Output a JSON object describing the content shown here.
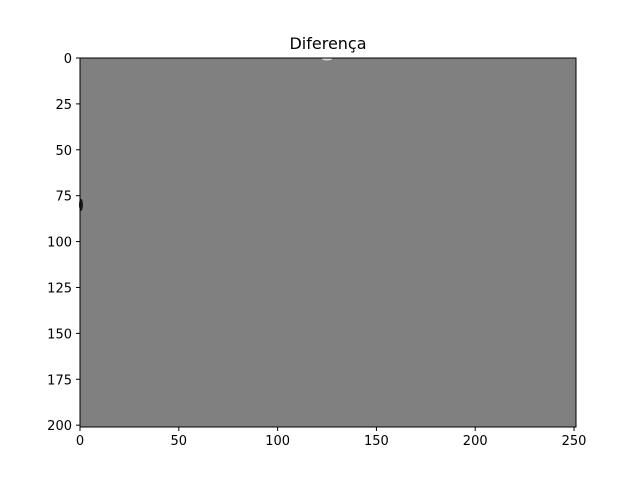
{
  "chart_data": {
    "type": "heatmap",
    "title": "Diferença",
    "xlabel": "",
    "ylabel": "",
    "xlim": [
      0,
      251
    ],
    "ylim": [
      201,
      0
    ],
    "x_ticks": [
      0,
      50,
      100,
      150,
      200,
      250
    ],
    "y_ticks": [
      0,
      25,
      50,
      75,
      100,
      125,
      150,
      175,
      200
    ],
    "grid": false,
    "legend": "none",
    "colormap": "gray",
    "fill_color": "#808080",
    "features": [
      {
        "x": 0,
        "y": 80,
        "value": "dark",
        "color": "#1a1a1a"
      },
      {
        "x": 125,
        "y": 0,
        "value": "light",
        "color": "#d8d8d8"
      }
    ]
  }
}
